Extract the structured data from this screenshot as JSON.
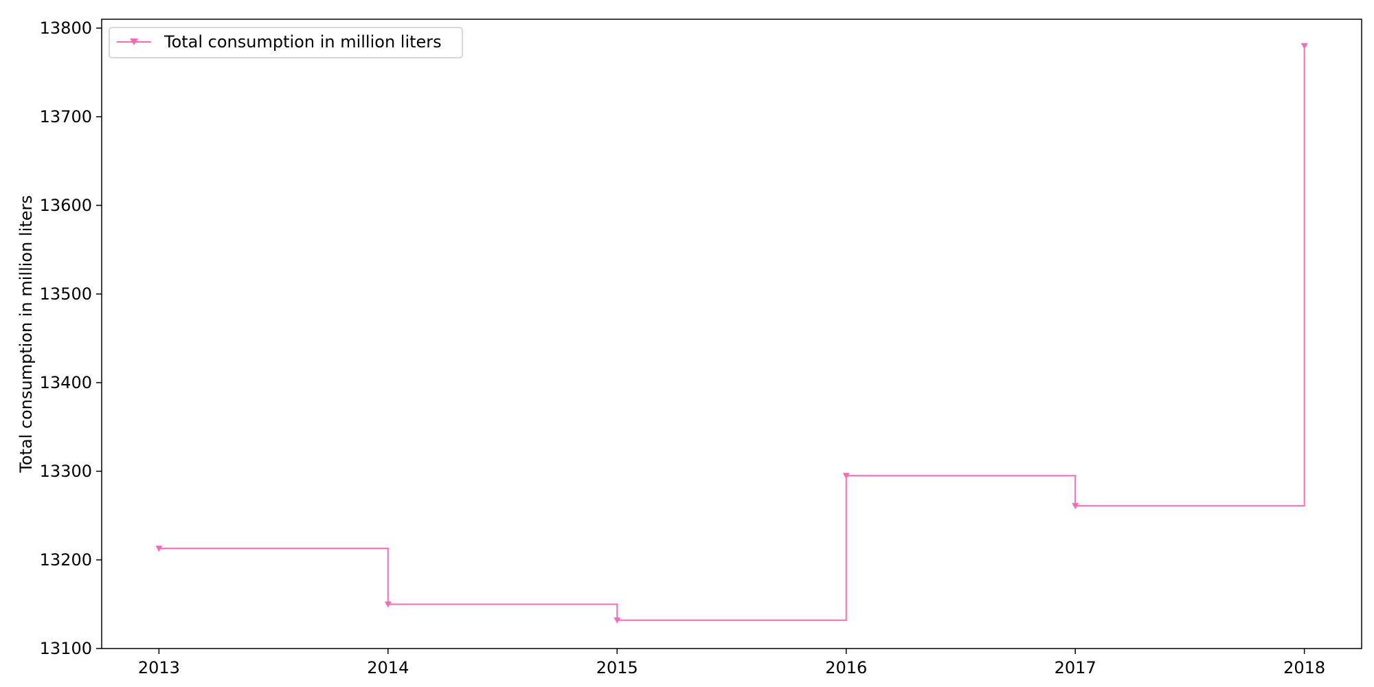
{
  "chart_data": {
    "type": "line",
    "step": "post",
    "x": [
      2013,
      2014,
      2015,
      2016,
      2017,
      2018
    ],
    "series": [
      {
        "name": "Total consumption in million liters",
        "values": [
          13213,
          13150,
          13132,
          13295,
          13261,
          13780
        ],
        "color": "#ff69b4",
        "marker": "triangle-down"
      }
    ],
    "xlabel": "",
    "ylabel": "Total consumption in million liters",
    "xlim": [
      2012.75,
      2018.25
    ],
    "ylim": [
      13100,
      13810
    ],
    "xticks": [
      "2013",
      "2014",
      "2015",
      "2016",
      "2017",
      "2018"
    ],
    "yticks": [
      "13100",
      "13200",
      "13300",
      "13400",
      "13500",
      "13600",
      "13700",
      "13800"
    ],
    "grid": false,
    "legend": "top-left"
  }
}
